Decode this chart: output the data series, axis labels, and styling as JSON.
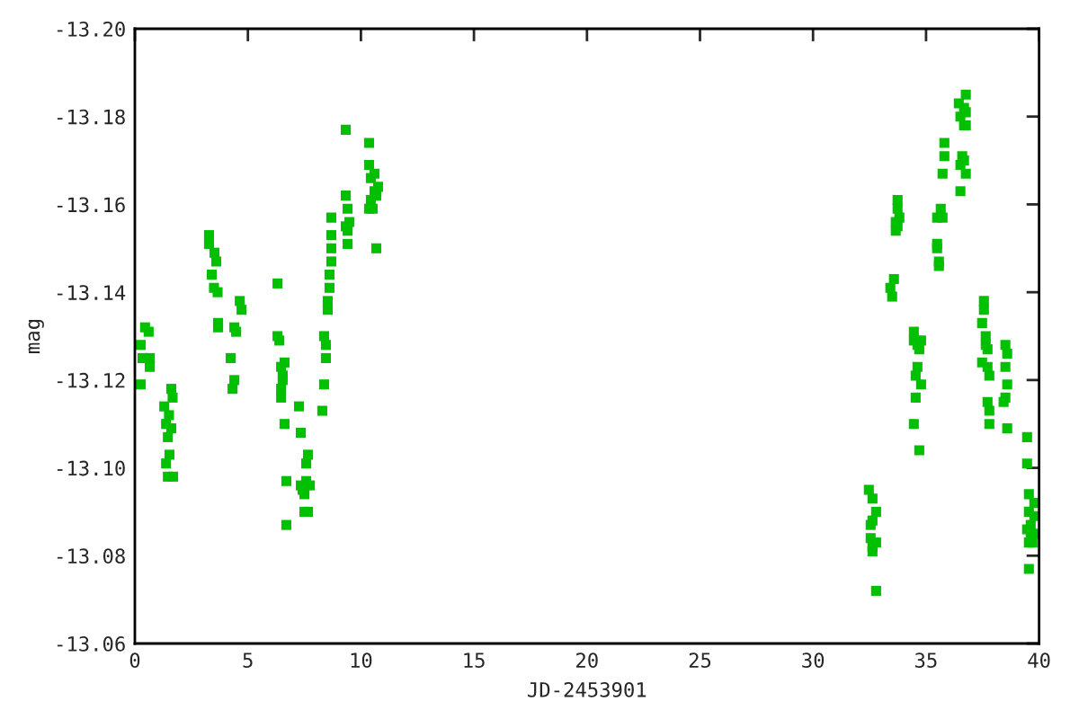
{
  "chart_data": {
    "type": "scatter",
    "xlabel": "JD-2453901",
    "ylabel": "mag",
    "marker": "square",
    "grid": false,
    "legend": false,
    "xlim": [
      0,
      40
    ],
    "xticks": [
      0,
      5,
      10,
      15,
      20,
      25,
      30,
      35,
      40
    ],
    "ylim": [
      -13.06,
      -13.2
    ],
    "yticks": [
      {
        "value": -13.2,
        "label": "-13.20"
      },
      -13.18,
      -13.16,
      -13.14,
      -13.12,
      {
        "value": -13.1,
        "label": "-13.10"
      },
      -13.08,
      -13.06
    ],
    "series": [
      {
        "color": "#00c000",
        "x": [
          0.45,
          0.61,
          0.26,
          0.34,
          0.66,
          0.66,
          0.26,
          1.61,
          1.67,
          1.3,
          1.51,
          1.38,
          1.61,
          1.46,
          1.53,
          1.38,
          1.46,
          1.69,
          3.28,
          3.28,
          3.52,
          3.6,
          3.4,
          3.5,
          3.66,
          4.64,
          4.72,
          3.68,
          3.68,
          4.4,
          4.48,
          4.24,
          4.4,
          4.32,
          6.31,
          6.31,
          6.39,
          6.62,
          6.47,
          6.54,
          6.54,
          6.47,
          6.47,
          7.26,
          6.62,
          7.34,
          7.66,
          7.58,
          6.7,
          7.34,
          7.58,
          7.74,
          7.42,
          7.5,
          7.5,
          7.66,
          6.7,
          8.69,
          8.69,
          8.69,
          8.69,
          8.61,
          8.61,
          8.53,
          8.53,
          8.37,
          8.45,
          8.45,
          8.37,
          8.29,
          9.33,
          9.33,
          9.41,
          9.49,
          9.33,
          9.41,
          9.41,
          10.36,
          10.36,
          10.6,
          10.44,
          10.76,
          10.6,
          10.68,
          10.44,
          10.36,
          10.52,
          10.68,
          32.47,
          32.63,
          32.79,
          32.63,
          32.55,
          32.55,
          32.79,
          32.63,
          32.63,
          32.79,
          33.74,
          33.74,
          33.82,
          33.66,
          33.74,
          33.66,
          33.58,
          33.42,
          33.5,
          34.46,
          34.46,
          34.78,
          34.62,
          34.7,
          34.62,
          34.54,
          34.78,
          34.54,
          34.46,
          34.7,
          35.81,
          35.81,
          35.73,
          35.65,
          35.49,
          35.73,
          35.49,
          35.49,
          35.57,
          35.57,
          36.76,
          36.45,
          36.68,
          36.76,
          36.52,
          36.76,
          36.68,
          36.6,
          36.68,
          36.52,
          36.76,
          36.52,
          37.56,
          37.56,
          37.48,
          37.64,
          37.64,
          37.72,
          37.48,
          37.72,
          37.8,
          37.72,
          37.8,
          37.8,
          38.51,
          38.59,
          38.51,
          38.59,
          38.51,
          38.43,
          38.59,
          39.47,
          39.47,
          39.55,
          39.79,
          39.55,
          39.79,
          39.63,
          39.47,
          39.79,
          39.63,
          39.55,
          39.71,
          39.55
        ],
        "values": [
          -13.132,
          -13.131,
          -13.128,
          -13.125,
          -13.125,
          -13.123,
          -13.119,
          -13.118,
          -13.116,
          -13.114,
          -13.112,
          -13.11,
          -13.109,
          -13.107,
          -13.103,
          -13.101,
          -13.098,
          -13.098,
          -13.153,
          -13.151,
          -13.149,
          -13.147,
          -13.144,
          -13.141,
          -13.14,
          -13.138,
          -13.136,
          -13.133,
          -13.132,
          -13.132,
          -13.131,
          -13.125,
          -13.12,
          -13.118,
          -13.142,
          -13.13,
          -13.129,
          -13.124,
          -13.123,
          -13.121,
          -13.12,
          -13.118,
          -13.116,
          -13.114,
          -13.11,
          -13.108,
          -13.103,
          -13.101,
          -13.097,
          -13.096,
          -13.097,
          -13.096,
          -13.095,
          -13.094,
          -13.09,
          -13.09,
          -13.087,
          -13.157,
          -13.153,
          -13.15,
          -13.147,
          -13.144,
          -13.141,
          -13.138,
          -13.136,
          -13.13,
          -13.128,
          -13.125,
          -13.119,
          -13.113,
          -13.177,
          -13.162,
          -13.159,
          -13.156,
          -13.155,
          -13.154,
          -13.151,
          -13.174,
          -13.169,
          -13.167,
          -13.166,
          -13.164,
          -13.163,
          -13.162,
          -13.161,
          -13.159,
          -13.159,
          -13.15,
          -13.095,
          -13.093,
          -13.09,
          -13.088,
          -13.087,
          -13.084,
          -13.083,
          -13.082,
          -13.081,
          -13.072,
          -13.161,
          -13.159,
          -13.157,
          -13.156,
          -13.155,
          -13.154,
          -13.143,
          -13.141,
          -13.139,
          -13.131,
          -13.129,
          -13.129,
          -13.128,
          -13.127,
          -13.123,
          -13.121,
          -13.119,
          -13.116,
          -13.11,
          -13.104,
          -13.174,
          -13.171,
          -13.167,
          -13.159,
          -13.157,
          -13.157,
          -13.151,
          -13.15,
          -13.147,
          -13.146,
          -13.185,
          -13.183,
          -13.182,
          -13.181,
          -13.18,
          -13.178,
          -13.178,
          -13.171,
          -13.17,
          -13.169,
          -13.167,
          -13.163,
          -13.138,
          -13.136,
          -13.133,
          -13.13,
          -13.128,
          -13.127,
          -13.124,
          -13.123,
          -13.121,
          -13.115,
          -13.113,
          -13.11,
          -13.128,
          -13.126,
          -13.123,
          -13.119,
          -13.116,
          -13.115,
          -13.109,
          -13.107,
          -13.101,
          -13.094,
          -13.092,
          -13.09,
          -13.089,
          -13.087,
          -13.086,
          -13.085,
          -13.084,
          -13.083,
          -13.083,
          -13.077
        ]
      }
    ]
  }
}
